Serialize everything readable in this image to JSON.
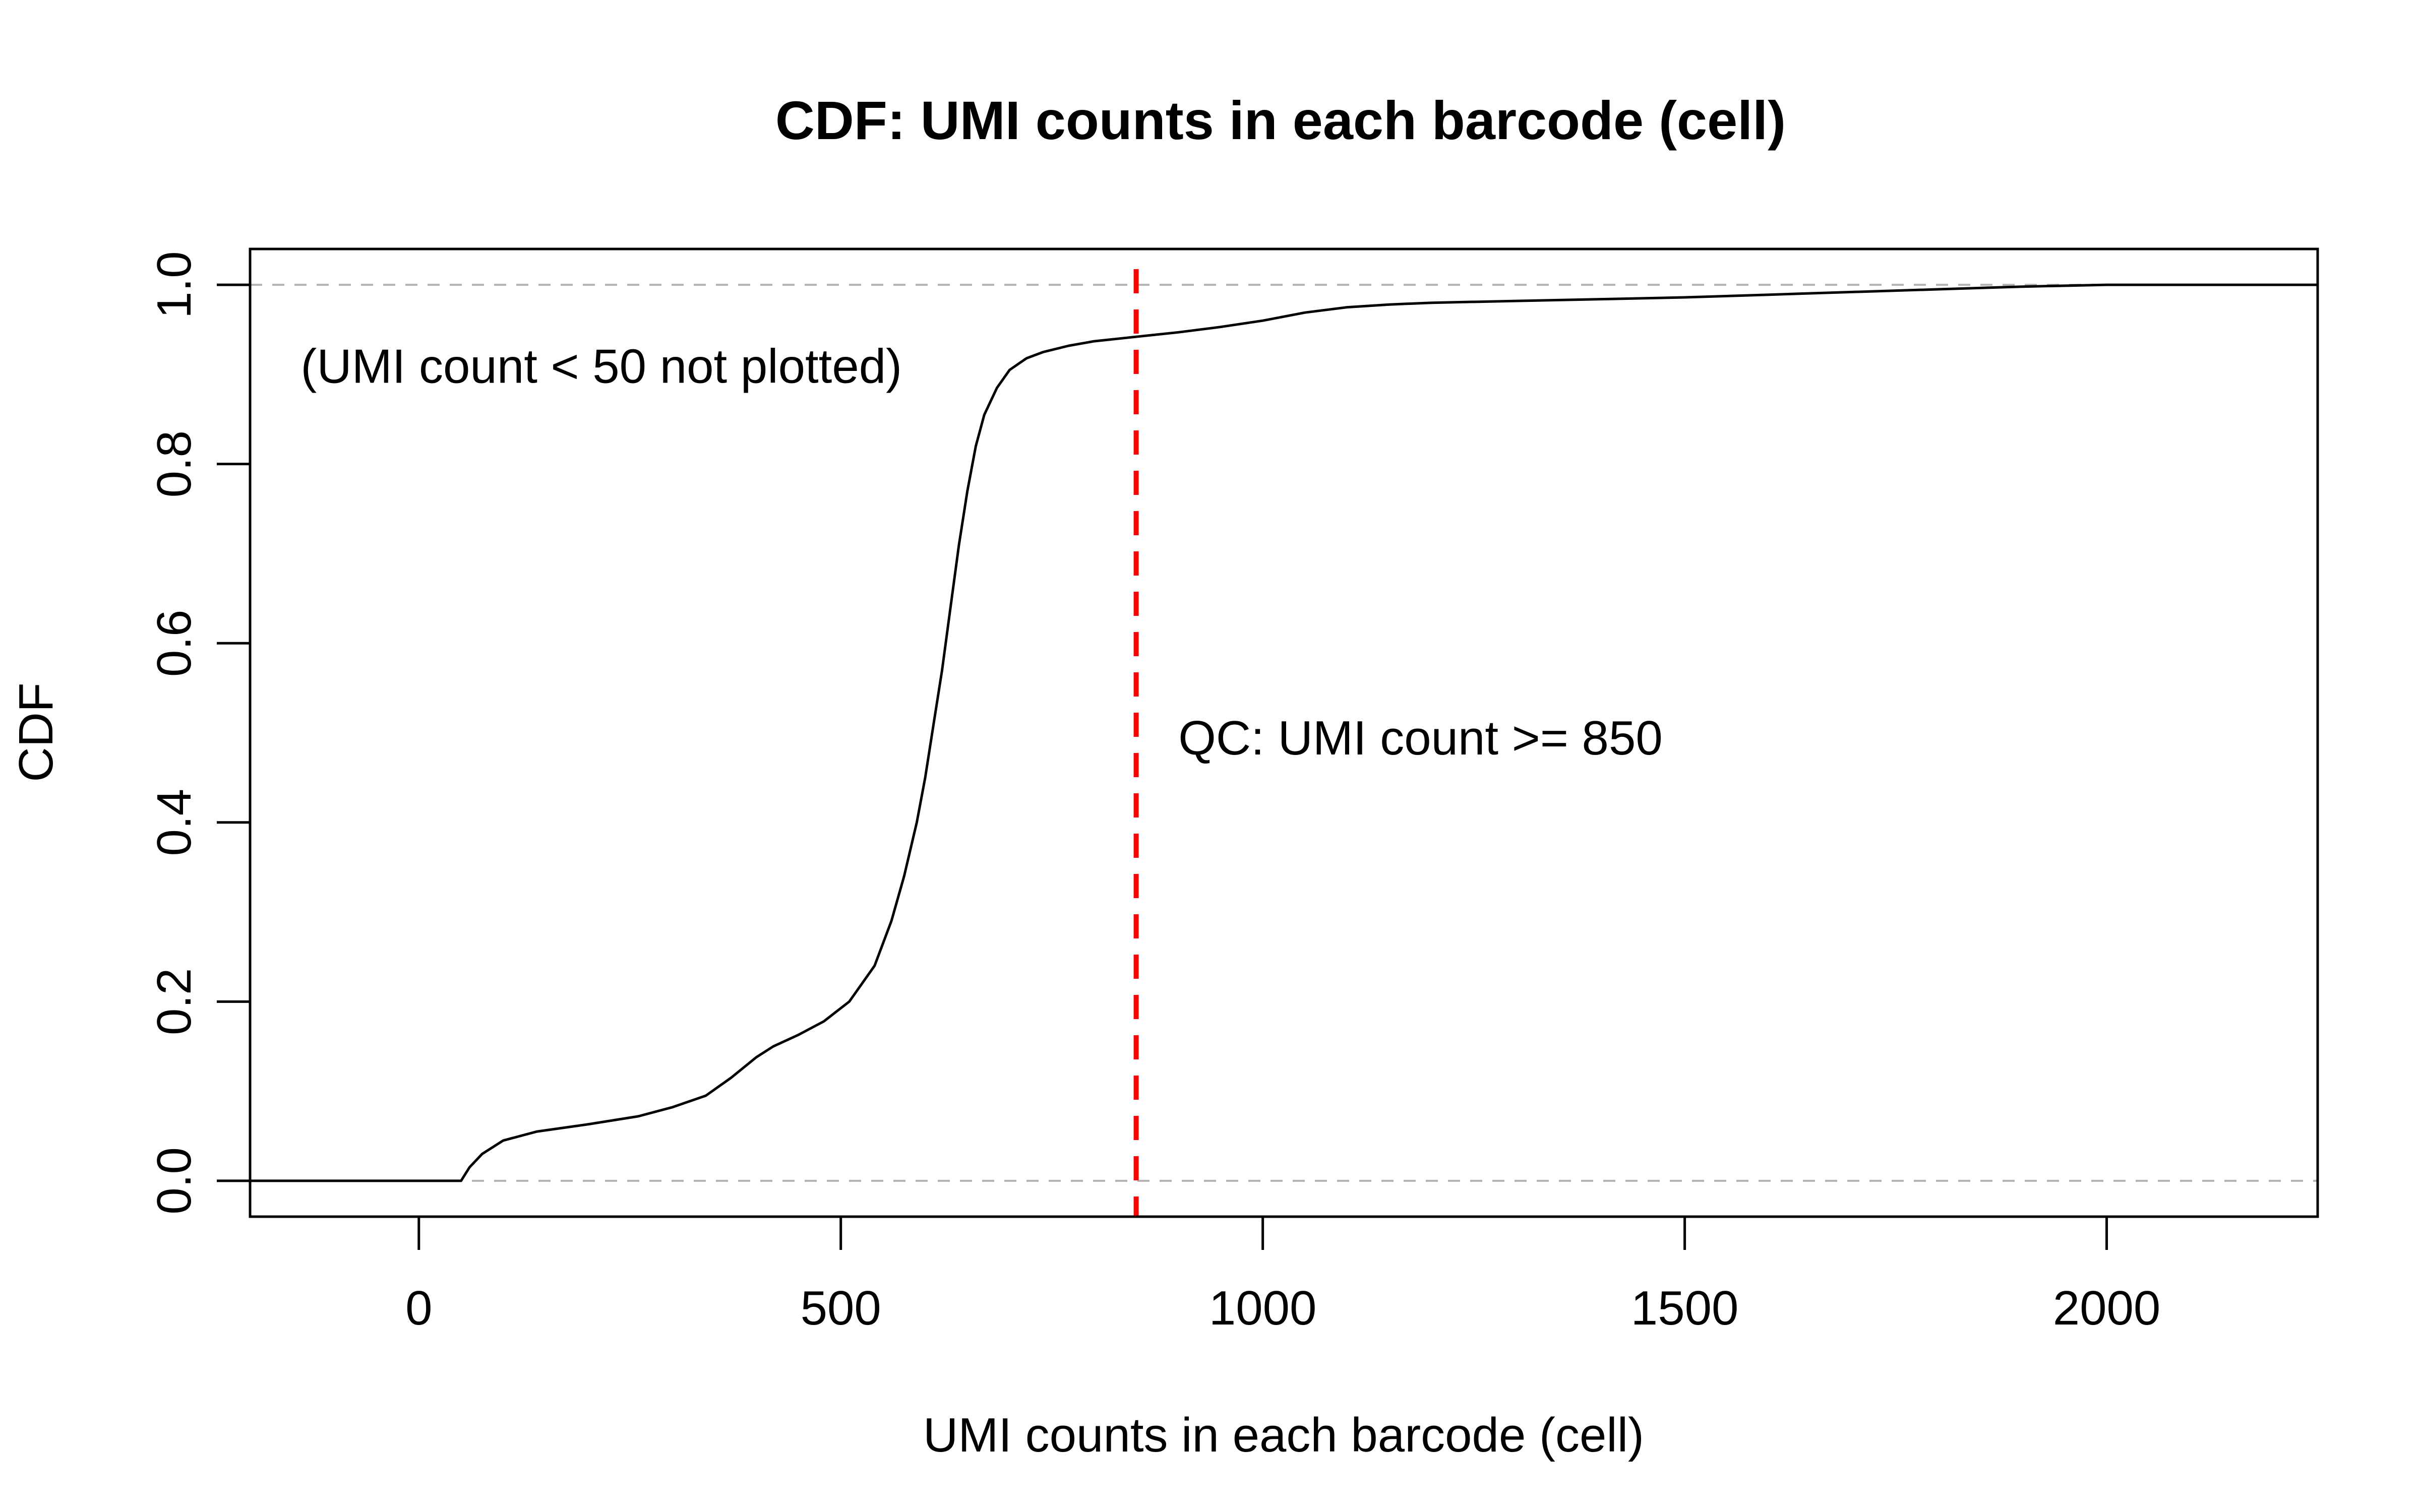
{
  "chart_data": {
    "type": "line",
    "title": "CDF: UMI counts in each barcode (cell)",
    "xlabel": "UMI counts in each barcode (cell)",
    "ylabel": "CDF",
    "xlim": [
      -200,
      2250
    ],
    "ylim": [
      -0.04,
      1.04
    ],
    "x_ticks": [
      0,
      500,
      1000,
      1500,
      2000
    ],
    "x_tick_labels": [
      "0",
      "500",
      "1000",
      "1500",
      "2000"
    ],
    "y_ticks": [
      0.0,
      0.2,
      0.4,
      0.6,
      0.8,
      1.0
    ],
    "y_tick_labels": [
      "0.0",
      "0.2",
      "0.4",
      "0.6",
      "0.8",
      "1.0"
    ],
    "grid": false,
    "reference_lines": [
      {
        "orientation": "horizontal",
        "y": 0.0,
        "style": "dashed",
        "color": "#b3b3b3"
      },
      {
        "orientation": "horizontal",
        "y": 1.0,
        "style": "dashed",
        "color": "#b3b3b3"
      },
      {
        "orientation": "vertical",
        "x": 850,
        "style": "dashed",
        "color": "#ff0000"
      }
    ],
    "annotations": [
      {
        "text": "(UMI count < 50 not plotted)",
        "x": -140,
        "y": 0.905
      },
      {
        "text": "QC: UMI count >= 850",
        "x": 900,
        "y": 0.49
      }
    ],
    "series": [
      {
        "color": "#000000",
        "x": [
          -200,
          0,
          50,
          60,
          75,
          100,
          140,
          200,
          260,
          300,
          340,
          370,
          400,
          420,
          450,
          480,
          510,
          540,
          560,
          575,
          590,
          600,
          610,
          620,
          630,
          640,
          650,
          660,
          670,
          685,
          700,
          720,
          740,
          770,
          800,
          850,
          900,
          950,
          1000,
          1050,
          1100,
          1150,
          1200,
          1300,
          1400,
          1500,
          1600,
          1700,
          1800,
          1900,
          2000,
          2100,
          2250
        ],
        "y": [
          0.0,
          0.0,
          0.0,
          0.015,
          0.03,
          0.045,
          0.055,
          0.063,
          0.072,
          0.082,
          0.095,
          0.115,
          0.138,
          0.15,
          0.163,
          0.178,
          0.2,
          0.24,
          0.29,
          0.34,
          0.4,
          0.45,
          0.51,
          0.57,
          0.64,
          0.71,
          0.77,
          0.82,
          0.855,
          0.885,
          0.905,
          0.918,
          0.925,
          0.932,
          0.937,
          0.942,
          0.947,
          0.953,
          0.96,
          0.969,
          0.975,
          0.978,
          0.98,
          0.982,
          0.984,
          0.986,
          0.989,
          0.992,
          0.995,
          0.998,
          1.0,
          1.0,
          1.0
        ]
      }
    ]
  }
}
